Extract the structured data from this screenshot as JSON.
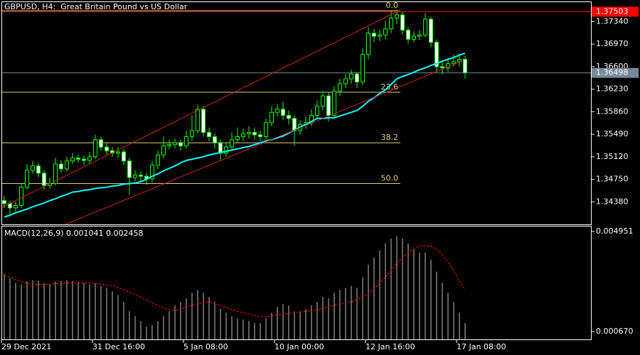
{
  "chart_data": [
    {
      "type": "candlestick",
      "title": "GBPUSD, H4:  Great Britain Pound vs US Dollar",
      "categories": [
        "29 Dec 2021",
        null,
        null,
        null,
        null,
        null,
        null,
        null,
        null,
        null,
        null,
        null,
        null,
        null,
        null,
        null,
        "31 Dec 16:00",
        null,
        null,
        null,
        null,
        null,
        null,
        null,
        null,
        null,
        null,
        null,
        null,
        null,
        null,
        null,
        "5 Jan 08:00",
        null,
        null,
        null,
        null,
        null,
        null,
        null,
        null,
        null,
        null,
        null,
        null,
        null,
        null,
        null,
        "10 Jan 00:00",
        null,
        null,
        null,
        null,
        null,
        null,
        null,
        null,
        null,
        null,
        null,
        null,
        null,
        null,
        null,
        "12 Jan 16:00",
        null,
        null,
        null,
        null,
        null,
        null,
        null,
        null,
        null,
        null,
        null,
        null,
        null,
        null,
        null,
        "17 Jan 08:00",
        null
      ],
      "open": [
        1.344,
        1.3435,
        1.3428,
        1.3432,
        1.3462,
        1.349,
        1.3497,
        1.3485,
        1.3465,
        1.3468,
        1.35,
        1.3492,
        1.3505,
        1.351,
        1.3508,
        1.3506,
        1.3512,
        1.354,
        1.3528,
        1.3522,
        1.3518,
        1.352,
        1.3505,
        1.3478,
        1.3482,
        1.348,
        1.3476,
        1.3498,
        1.3515,
        1.353,
        1.3532,
        1.3535,
        1.353,
        1.3545,
        1.3555,
        1.359,
        1.3552,
        1.3545,
        1.3535,
        1.3518,
        1.3528,
        1.354,
        1.3545,
        1.355,
        1.3552,
        1.3548,
        1.3545,
        1.3568,
        1.3585,
        1.359,
        1.358,
        1.3575,
        1.3555,
        1.3565,
        1.3568,
        1.358,
        1.3595,
        1.3612,
        1.358,
        1.362,
        1.3632,
        1.364,
        1.3648,
        1.3635,
        1.368,
        1.3715,
        1.371,
        1.3712,
        1.3722,
        1.374,
        1.3745,
        1.372,
        1.3705,
        1.371,
        1.3712,
        1.3738,
        1.37,
        1.366,
        1.3658,
        1.3665,
        1.3668,
        1.3672
      ],
      "high": [
        1.3448,
        1.344,
        1.3438,
        1.3468,
        1.35,
        1.3505,
        1.3502,
        1.349,
        1.3478,
        1.351,
        1.3506,
        1.3512,
        1.3518,
        1.3516,
        1.3514,
        1.352,
        1.3548,
        1.3545,
        1.3535,
        1.3528,
        1.3528,
        1.3525,
        1.351,
        1.349,
        1.3488,
        1.3486,
        1.3505,
        1.3522,
        1.3545,
        1.354,
        1.3542,
        1.354,
        1.3555,
        1.358,
        1.3598,
        1.3595,
        1.356,
        1.355,
        1.354,
        1.3535,
        1.3552,
        1.356,
        1.3558,
        1.3562,
        1.356,
        1.3555,
        1.3575,
        1.3595,
        1.3598,
        1.3602,
        1.3588,
        1.358,
        1.3572,
        1.3578,
        1.359,
        1.3605,
        1.362,
        1.3618,
        1.3628,
        1.364,
        1.3648,
        1.3655,
        1.3652,
        1.369,
        1.3725,
        1.3722,
        1.372,
        1.3735,
        1.3752,
        1.3752,
        1.375,
        1.3725,
        1.3718,
        1.372,
        1.3748,
        1.3742,
        1.3705,
        1.3668,
        1.3675,
        1.368,
        1.3682,
        1.3678
      ],
      "low": [
        1.3428,
        1.3418,
        1.3422,
        1.3428,
        1.3458,
        1.3484,
        1.3478,
        1.3458,
        1.346,
        1.3465,
        1.3486,
        1.3488,
        1.35,
        1.3502,
        1.3498,
        1.35,
        1.3508,
        1.3522,
        1.3515,
        1.3512,
        1.351,
        1.3498,
        1.345,
        1.3472,
        1.3472,
        1.3466,
        1.347,
        1.3492,
        1.351,
        1.3524,
        1.3526,
        1.3522,
        1.3525,
        1.3538,
        1.355,
        1.3545,
        1.3538,
        1.3525,
        1.3505,
        1.3512,
        1.3522,
        1.3535,
        1.3538,
        1.3542,
        1.354,
        1.3538,
        1.354,
        1.3562,
        1.3578,
        1.3572,
        1.3565,
        1.353,
        1.3548,
        1.3558,
        1.3562,
        1.3575,
        1.3588,
        1.357,
        1.3575,
        1.3612,
        1.3625,
        1.3632,
        1.3625,
        1.363,
        1.3672,
        1.37,
        1.3702,
        1.3705,
        1.3715,
        1.373,
        1.3712,
        1.3698,
        1.37,
        1.3704,
        1.3708,
        1.3692,
        1.3652,
        1.3648,
        1.3652,
        1.366,
        1.366,
        1.364
      ],
      "close": [
        1.3435,
        1.3428,
        1.3432,
        1.3462,
        1.349,
        1.3497,
        1.3485,
        1.3465,
        1.3468,
        1.35,
        1.3492,
        1.3505,
        1.351,
        1.3508,
        1.3506,
        1.3512,
        1.354,
        1.3528,
        1.3522,
        1.3518,
        1.352,
        1.3505,
        1.3478,
        1.3482,
        1.348,
        1.3476,
        1.3498,
        1.3515,
        1.353,
        1.3532,
        1.3535,
        1.353,
        1.3545,
        1.3555,
        1.359,
        1.3552,
        1.3545,
        1.3535,
        1.3518,
        1.3528,
        1.354,
        1.3545,
        1.355,
        1.3552,
        1.3548,
        1.3545,
        1.3568,
        1.3585,
        1.359,
        1.358,
        1.3575,
        1.3555,
        1.3565,
        1.3568,
        1.358,
        1.3595,
        1.3612,
        1.358,
        1.362,
        1.3632,
        1.364,
        1.3648,
        1.3635,
        1.368,
        1.3715,
        1.371,
        1.3712,
        1.3722,
        1.374,
        1.3745,
        1.372,
        1.3705,
        1.371,
        1.3712,
        1.3738,
        1.37,
        1.366,
        1.3658,
        1.3665,
        1.3668,
        1.3672,
        1.365
      ],
      "candle_color": "#00ff00",
      "bull_fill": "#000000",
      "bear_fill": "#ffffff",
      "ma": {
        "color": "#00ffff",
        "values": [
          1.3413,
          1.3416,
          1.342,
          1.3423,
          1.3426,
          1.343,
          1.3433,
          1.3436,
          1.344,
          1.3443,
          1.3447,
          1.345,
          1.3454,
          1.3455,
          1.3457,
          1.3458,
          1.346,
          1.3461,
          1.3462,
          1.3464,
          1.3465,
          1.3467,
          1.3468,
          1.3469,
          1.3471,
          1.3475,
          1.348,
          1.3484,
          1.3489,
          1.3493,
          1.3497,
          1.3502,
          1.3506,
          1.3508,
          1.351,
          1.3512,
          1.3515,
          1.3517,
          1.3519,
          1.3521,
          1.3523,
          1.3525,
          1.3527,
          1.3529,
          1.3532,
          1.3535,
          1.3538,
          1.354,
          1.3543,
          1.3546,
          1.3551,
          1.3556,
          1.3561,
          1.3565,
          1.357,
          1.3575,
          1.3575,
          1.3576,
          1.3576,
          1.3579,
          1.3582,
          1.3585,
          1.3588,
          1.3595,
          1.3603,
          1.3609,
          1.3616,
          1.3622,
          1.3631,
          1.364,
          1.3644,
          1.3647,
          1.3651,
          1.3655,
          1.3658,
          1.3662,
          1.3665,
          1.3669,
          1.3672,
          1.3675,
          1.3679,
          1.3682
        ]
      },
      "ylim": [
        1.3401,
        1.3766
      ],
      "yticks": [
        {
          "value": 1.3734,
          "label": "1.37340"
        },
        {
          "value": 1.3697,
          "label": "1.36970"
        },
        {
          "value": 1.366,
          "label": "1.36600"
        },
        {
          "value": 1.3623,
          "label": "1.36230"
        },
        {
          "value": 1.3586,
          "label": "1.35860"
        },
        {
          "value": 1.3549,
          "label": "1.35490"
        },
        {
          "value": 1.3512,
          "label": "1.35120"
        },
        {
          "value": 1.3475,
          "label": "1.34750"
        },
        {
          "value": 1.3438,
          "label": "1.34380"
        }
      ],
      "price_lines": [
        {
          "value": 1.37503,
          "color": "#ff0000"
        },
        {
          "value": 1.36498,
          "color": "#778899"
        }
      ],
      "fib": {
        "color": "#e0d070",
        "levels": [
          {
            "level": {
              "value": 0,
              "label": "0.0"
            },
            "price": 1.3752
          },
          {
            "level": 23.6,
            "price": 1.3618
          },
          {
            "level": 38.2,
            "price": 1.3535
          },
          {
            "level": {
              "value": 50,
              "label": "50.0"
            },
            "price": 1.3468
          }
        ]
      }
    },
    {
      "type": "macd",
      "indicator": "MACD(12,26,9)",
      "macd_value": 0.001041,
      "signal_value": 0.002458,
      "histogram": {
        "color": "#c0c0c0",
        "values": [
          0.00314,
          0.00293,
          0.00275,
          0.00269,
          0.00281,
          0.00287,
          0.00284,
          0.00275,
          0.00269,
          0.00281,
          0.00284,
          0.00287,
          0.00284,
          0.00281,
          0.00275,
          0.00269,
          0.00275,
          0.00263,
          0.00254,
          0.00239,
          0.00224,
          0.00194,
          0.00154,
          0.00133,
          0.00112,
          0.00088,
          0.00094,
          0.00112,
          0.00133,
          0.00154,
          0.00179,
          0.00194,
          0.00209,
          0.00233,
          0.00245,
          0.00233,
          0.00215,
          0.00194,
          0.00164,
          0.00148,
          0.00133,
          0.00124,
          0.00118,
          0.00112,
          0.00103,
          0.00103,
          0.00124,
          0.00148,
          0.00173,
          0.00185,
          0.00179,
          0.00154,
          0.00154,
          0.00164,
          0.00179,
          0.00194,
          0.00215,
          0.00209,
          0.00233,
          0.00245,
          0.00254,
          0.00263,
          0.00254,
          0.00299,
          0.00353,
          0.00384,
          0.00414,
          0.00444,
          0.00465,
          0.00474,
          0.00465,
          0.00444,
          0.0042,
          0.00405,
          0.00405,
          0.00375,
          0.00323,
          0.00275,
          0.00233,
          0.00194,
          0.00148,
          0.001041
        ]
      },
      "signal": {
        "color": "#ff0000",
        "values": [
          0.00305,
          0.00299,
          0.0029,
          0.00281,
          0.00275,
          0.00269,
          0.00269,
          0.00269,
          0.00269,
          0.00272,
          0.00272,
          0.00275,
          0.00275,
          0.00275,
          0.00275,
          0.00275,
          0.00272,
          0.00269,
          0.00266,
          0.00263,
          0.00254,
          0.00245,
          0.00236,
          0.00227,
          0.00215,
          0.00203,
          0.00191,
          0.00179,
          0.00169,
          0.0016,
          0.00157,
          0.00163,
          0.00172,
          0.00179,
          0.00185,
          0.00191,
          0.00194,
          0.00188,
          0.00179,
          0.00169,
          0.0016,
          0.00154,
          0.00148,
          0.00142,
          0.00136,
          0.0013,
          0.0013,
          0.00133,
          0.00139,
          0.00142,
          0.00145,
          0.00148,
          0.00151,
          0.00154,
          0.00157,
          0.0016,
          0.00166,
          0.00172,
          0.00179,
          0.00185,
          0.00188,
          0.00194,
          0.00203,
          0.00215,
          0.0023,
          0.00251,
          0.00275,
          0.00299,
          0.00329,
          0.00359,
          0.00384,
          0.00405,
          0.0042,
          0.00432,
          0.00435,
          0.00432,
          0.0042,
          0.00396,
          0.00365,
          0.00329,
          0.00284,
          0.002458
        ]
      },
      "ylim": [
        0.000338,
        0.005162
      ],
      "yticks": [
        0.004951,
        {
          "value": 0.00067,
          "label": "0.000670"
        }
      ]
    }
  ]
}
